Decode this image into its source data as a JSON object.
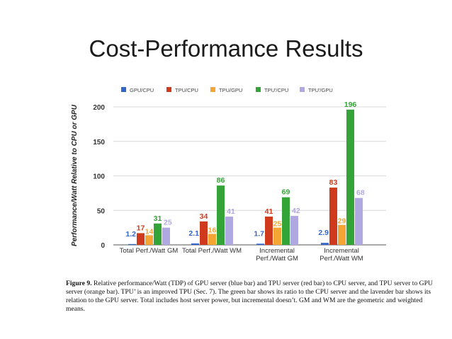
{
  "slide": {
    "title": "Cost-Performance Results"
  },
  "caption": {
    "label": "Figure 9.",
    "text": "Relative performance/Watt (TDP) of GPU server (blue bar) and TPU server (red bar) to CPU server, and TPU server to GPU server (orange bar). TPU’ is an improved TPU (Sec. 7). The green bar shows its ratio to the CPU server and the lavender bar shows its relation to the GPU server. Total includes host server power, but incremental doesn’t. GM and WM are the geometric and weighted means."
  },
  "chart_data": {
    "type": "bar",
    "title": "",
    "xlabel": "",
    "ylabel": "Performance/Watt Relative to CPU or GPU",
    "ylim": [
      0,
      220
    ],
    "yticks": [
      0,
      50,
      100,
      150,
      200
    ],
    "grid": true,
    "legend_position": "top",
    "categories": [
      "Total Perf./Watt GM",
      "Total Perf./Watt WM",
      "Incremental Perf./Watt GM",
      "Incremental Perf./Watt WM"
    ],
    "series": [
      {
        "name": "GPU/CPU",
        "color": "#3366cc",
        "values": [
          1.2,
          2.1,
          1.7,
          2.9
        ],
        "labels": [
          "1.2",
          "2.1",
          "1.7",
          "2.9"
        ]
      },
      {
        "name": "TPU/CPU",
        "color": "#cf3a1c",
        "values": [
          17,
          34,
          41,
          83
        ],
        "labels": [
          "17",
          "34",
          "41",
          "83"
        ]
      },
      {
        "name": "TPU/GPU",
        "color": "#f4a533",
        "values": [
          14,
          16,
          25,
          29
        ],
        "labels": [
          "14",
          "16",
          "25",
          "29"
        ]
      },
      {
        "name": "TPU'/CPU",
        "color": "#34a338",
        "values": [
          31,
          86,
          69,
          196
        ],
        "labels": [
          "31",
          "86",
          "69",
          "196"
        ]
      },
      {
        "name": "TPU'/GPU",
        "color": "#b0a8e0",
        "values": [
          25,
          41,
          42,
          68
        ],
        "labels": [
          "25",
          "41",
          "42",
          "68"
        ]
      }
    ]
  }
}
